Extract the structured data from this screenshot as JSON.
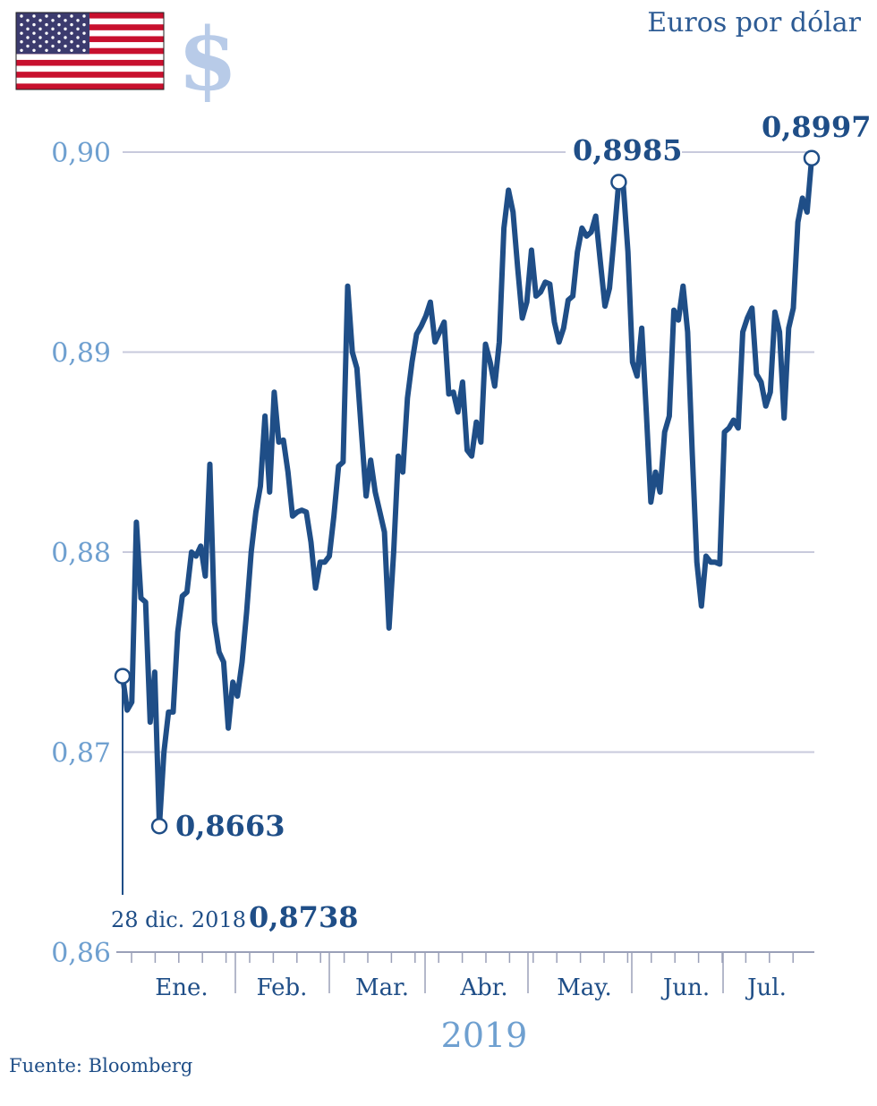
{
  "unit_label": "Euros por dólar",
  "currency_symbol": "$",
  "source": "Fuente: Bloomberg",
  "year_label": "2019",
  "start_annotation": {
    "date": "28 dic. 2018",
    "value": "0,8738"
  },
  "callouts": {
    "min": "0,8663",
    "may_peak": "0,8985",
    "last": "0,8997"
  },
  "colors": {
    "line": "#1f4e87",
    "grid": "#c8cadc",
    "axis_labels": "#6fa0d0",
    "dollar": "#b8cbe8",
    "flag_red": "#c8102e",
    "flag_blue": "#3c3b6e"
  },
  "icons": [
    "us-flag-icon",
    "dollar-sign-icon"
  ],
  "chart_data": {
    "type": "line",
    "title": "Euros por dólar",
    "xlabel": "2019",
    "ylabel": "",
    "ylim": [
      0.86,
      0.901
    ],
    "yticks": [
      0.86,
      0.87,
      0.88,
      0.89,
      0.9
    ],
    "ytick_labels": [
      "0,86",
      "0,87",
      "0,88",
      "0,89",
      "0,90"
    ],
    "grid": true,
    "month_labels": [
      "Ene.",
      "Feb.",
      "Mar.",
      "Abr.",
      "May.",
      "Jun.",
      "Jul."
    ],
    "series": [
      {
        "values": [
          0.8738,
          0.8721,
          0.8725,
          0.8815,
          0.8777,
          0.8775,
          0.8715,
          0.874,
          0.8663,
          0.87,
          0.872,
          0.872,
          0.876,
          0.8778,
          0.878,
          0.88,
          0.8798,
          0.8803,
          0.8788,
          0.8844,
          0.8765,
          0.875,
          0.8745,
          0.8712,
          0.8735,
          0.8728,
          0.8745,
          0.877,
          0.88,
          0.882,
          0.8833,
          0.8868,
          0.883,
          0.888,
          0.8855,
          0.8856,
          0.884,
          0.8818,
          0.882,
          0.8821,
          0.882,
          0.8805,
          0.8782,
          0.8795,
          0.8795,
          0.8798,
          0.8818,
          0.8843,
          0.8845,
          0.8933,
          0.89,
          0.8892,
          0.886,
          0.8828,
          0.8846,
          0.883,
          0.882,
          0.881,
          0.8762,
          0.88,
          0.8848,
          0.884,
          0.8877,
          0.8895,
          0.8909,
          0.8913,
          0.8918,
          0.8925,
          0.8905,
          0.891,
          0.8915,
          0.8879,
          0.888,
          0.887,
          0.8885,
          0.8851,
          0.8848,
          0.8865,
          0.8855,
          0.8904,
          0.8895,
          0.8883,
          0.8905,
          0.8962,
          0.8981,
          0.897,
          0.8942,
          0.8917,
          0.8925,
          0.8951,
          0.8928,
          0.893,
          0.8935,
          0.8934,
          0.8915,
          0.8905,
          0.8912,
          0.8926,
          0.8928,
          0.895,
          0.8962,
          0.8958,
          0.896,
          0.8968,
          0.8945,
          0.8923,
          0.8932,
          0.8958,
          0.8985,
          0.8983,
          0.895,
          0.8895,
          0.8888,
          0.8912,
          0.887,
          0.8825,
          0.884,
          0.883,
          0.886,
          0.8868,
          0.8921,
          0.8916,
          0.8933,
          0.891,
          0.885,
          0.8795,
          0.8773,
          0.8798,
          0.8795,
          0.8795,
          0.8794,
          0.886,
          0.8862,
          0.8866,
          0.8862,
          0.891,
          0.8917,
          0.8922,
          0.8889,
          0.8885,
          0.8873,
          0.888,
          0.892,
          0.891,
          0.8867,
          0.8912,
          0.8922,
          0.8965,
          0.8977,
          0.897,
          0.8997
        ]
      }
    ]
  }
}
